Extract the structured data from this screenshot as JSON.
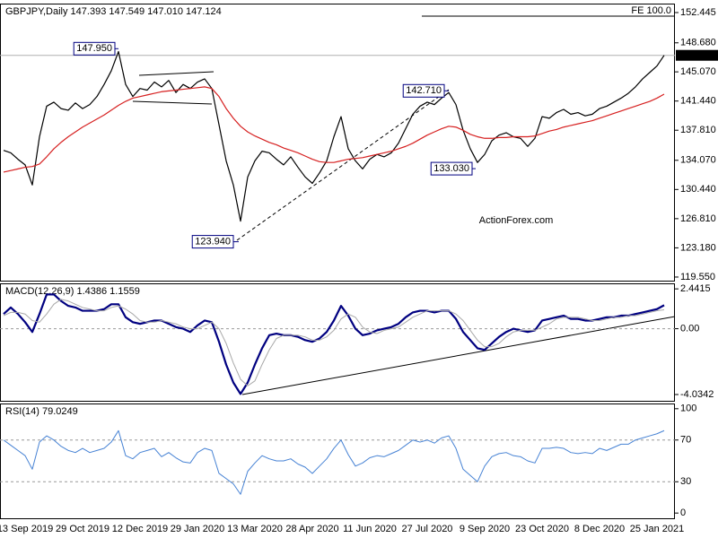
{
  "chart_data": [
    {
      "type": "line",
      "title": "GBPJPY,Daily  147.393 147.549 147.010 147.124",
      "ylim": [
        119.1,
        153.56
      ],
      "yticks": [
        {
          "value": 152.445,
          "label": "152.445"
        },
        {
          "value": 148.68,
          "label": "148.680"
        },
        {
          "value": 145.07,
          "label": "145.070"
        },
        {
          "value": 141.44,
          "label": "141.440"
        },
        {
          "value": 137.81,
          "label": "137.810"
        },
        {
          "value": 134.07,
          "label": "134.070"
        },
        {
          "value": 130.44,
          "label": "130.440"
        },
        {
          "value": 126.81,
          "label": "126.810"
        },
        {
          "value": 123.18,
          "label": "123.180"
        },
        {
          "value": 119.55,
          "label": "119.550"
        }
      ],
      "series": [
        {
          "color": "#000000",
          "values": [
            135.3,
            135.0,
            134.2,
            133.5,
            131.0,
            137.0,
            140.8,
            141.3,
            140.5,
            140.3,
            141.2,
            140.5,
            141.0,
            142.0,
            143.5,
            145.2,
            147.6,
            143.5,
            142.0,
            143.0,
            142.8,
            143.8,
            143.2,
            144.0,
            142.5,
            143.5,
            143.0,
            143.8,
            144.2,
            143.0,
            138.5,
            134.0,
            131.0,
            126.5,
            132.0,
            134.0,
            135.2,
            135.0,
            134.2,
            133.5,
            134.5,
            133.2,
            132.0,
            131.2,
            132.5,
            134.0,
            137.0,
            139.5,
            135.5,
            134.0,
            133.0,
            134.2,
            134.8,
            134.5,
            135.0,
            136.2,
            138.0,
            139.8,
            140.8,
            141.3,
            141.0,
            141.8,
            142.5,
            141.0,
            137.8,
            135.5,
            133.8,
            134.8,
            136.5,
            137.2,
            137.5,
            137.0,
            136.8,
            135.8,
            136.8,
            139.5,
            139.3,
            140.0,
            140.4,
            139.8,
            140.0,
            139.6,
            139.8,
            140.5,
            140.8,
            141.3,
            141.8,
            142.4,
            143.2,
            144.2,
            145.0,
            145.8,
            147.124
          ]
        },
        {
          "color": "#d62020",
          "values": [
            132.6,
            132.8,
            133.0,
            133.2,
            133.3,
            133.6,
            134.5,
            135.5,
            136.3,
            137.0,
            137.6,
            138.2,
            138.7,
            139.2,
            139.7,
            140.3,
            140.9,
            141.4,
            141.8,
            142.0,
            142.2,
            142.4,
            142.6,
            142.7,
            142.8,
            142.9,
            143.0,
            143.1,
            143.2,
            143.0,
            142.0,
            140.5,
            139.3,
            138.3,
            137.6,
            137.1,
            136.7,
            136.3,
            136.0,
            135.6,
            135.3,
            135.0,
            134.6,
            134.2,
            133.9,
            133.8,
            133.8,
            134.0,
            134.2,
            134.3,
            134.4,
            134.6,
            134.8,
            135.0,
            135.2,
            135.5,
            135.8,
            136.2,
            136.7,
            137.2,
            137.6,
            138.0,
            138.3,
            138.2,
            137.8,
            137.3,
            137.0,
            136.8,
            136.8,
            136.9,
            136.9,
            137.0,
            137.0,
            137.0,
            137.1,
            137.4,
            137.7,
            137.9,
            138.2,
            138.4,
            138.6,
            138.8,
            139.0,
            139.3,
            139.6,
            139.9,
            140.2,
            140.5,
            140.8,
            141.1,
            141.4,
            141.8,
            142.3
          ]
        }
      ],
      "current_price": {
        "value": 147.124,
        "label": "147.124"
      },
      "fe_level": {
        "value": 152.0,
        "label": "FE 100.0"
      },
      "annotations": [
        {
          "value": 147.95,
          "label": "147.950"
        },
        {
          "value": 142.71,
          "label": "142.710"
        },
        {
          "value": 133.03,
          "label": "133.030"
        },
        {
          "value": 123.94,
          "label": "123.940"
        }
      ],
      "watermark": "ActionForex.com"
    },
    {
      "type": "line",
      "title": "MACD(12,26,9) 1.4386 1.1559",
      "ylim": [
        -4.42,
        2.78
      ],
      "yticks": [
        2.4415,
        {
          "value": 0,
          "label": "0.00"
        },
        -4.0342
      ],
      "reference_lines": [
        0
      ],
      "series": [
        {
          "color": "#000080",
          "width": 2.2,
          "values": [
            0.9,
            1.3,
            0.9,
            0.4,
            -0.2,
            0.9,
            2.1,
            2.1,
            1.7,
            1.4,
            1.3,
            1.1,
            1.1,
            1.1,
            1.2,
            1.5,
            1.5,
            0.7,
            0.4,
            0.3,
            0.4,
            0.5,
            0.5,
            0.3,
            0.1,
            0.0,
            -0.2,
            0.2,
            0.5,
            0.4,
            -0.8,
            -2.2,
            -3.3,
            -4.0,
            -3.3,
            -2.2,
            -1.2,
            -0.4,
            -0.3,
            -0.4,
            -0.4,
            -0.5,
            -0.7,
            -0.8,
            -0.6,
            -0.2,
            0.5,
            1.4,
            0.8,
            0.0,
            -0.4,
            -0.3,
            -0.1,
            0.0,
            0.1,
            0.3,
            0.7,
            1.0,
            1.1,
            1.1,
            1.0,
            1.1,
            1.1,
            0.6,
            -0.2,
            -0.7,
            -1.2,
            -1.3,
            -0.9,
            -0.5,
            -0.2,
            0.0,
            -0.1,
            -0.2,
            -0.1,
            0.5,
            0.6,
            0.7,
            0.8,
            0.6,
            0.6,
            0.5,
            0.5,
            0.6,
            0.7,
            0.7,
            0.8,
            0.8,
            0.9,
            1.0,
            1.1,
            1.2,
            1.44
          ]
        },
        {
          "color": "#a8a8a8",
          "width": 1,
          "values": [
            0.8,
            1.0,
            1.0,
            0.9,
            0.5,
            0.4,
            0.9,
            1.5,
            1.8,
            1.7,
            1.5,
            1.3,
            1.2,
            1.1,
            1.1,
            1.3,
            1.4,
            1.2,
            0.9,
            0.5,
            0.4,
            0.4,
            0.5,
            0.4,
            0.3,
            0.1,
            0.0,
            0.0,
            0.2,
            0.4,
            0.0,
            -0.9,
            -2.1,
            -3.1,
            -3.5,
            -3.2,
            -2.2,
            -1.3,
            -0.6,
            -0.4,
            -0.4,
            -0.4,
            -0.5,
            -0.7,
            -0.7,
            -0.5,
            -0.1,
            0.6,
            0.9,
            0.7,
            0.1,
            -0.2,
            -0.3,
            -0.1,
            0.0,
            0.1,
            0.4,
            0.7,
            0.9,
            1.1,
            1.1,
            1.1,
            1.1,
            0.9,
            0.5,
            -0.1,
            -0.7,
            -1.1,
            -1.1,
            -0.9,
            -0.5,
            -0.2,
            -0.1,
            -0.1,
            -0.1,
            0.1,
            0.3,
            0.6,
            0.7,
            0.7,
            0.7,
            0.6,
            0.5,
            0.5,
            0.6,
            0.7,
            0.7,
            0.8,
            0.8,
            0.9,
            1.0,
            1.1,
            1.16
          ]
        }
      ]
    },
    {
      "type": "line",
      "title": "RSI(14) 79.0249",
      "ylim": [
        -5,
        105
      ],
      "yticks": [
        100,
        70,
        30,
        0
      ],
      "reference_lines": [
        70,
        30
      ],
      "categories": [
        null,
        null,
        null,
        "13 Sep 2019",
        null,
        null,
        null,
        null,
        null,
        null,
        null,
        "29 Oct 2019",
        null,
        null,
        null,
        null,
        null,
        null,
        null,
        "12 Dec 2019",
        null,
        null,
        null,
        null,
        null,
        null,
        null,
        "29 Jan 2020",
        null,
        null,
        null,
        null,
        null,
        null,
        null,
        "13 Mar 2020",
        null,
        null,
        null,
        null,
        null,
        null,
        null,
        "28 Apr 2020",
        null,
        null,
        null,
        null,
        null,
        null,
        null,
        "11 Jun 2020",
        null,
        null,
        null,
        null,
        null,
        null,
        null,
        "27 Jul 2020",
        null,
        null,
        null,
        null,
        null,
        null,
        null,
        "9 Sep 2020",
        null,
        null,
        null,
        null,
        null,
        null,
        null,
        "23 Oct 2020",
        null,
        null,
        null,
        null,
        null,
        null,
        null,
        "8 Dec 2020",
        null,
        null,
        null,
        null,
        null,
        null,
        null,
        "25 Jan 2021",
        null
      ],
      "series": [
        {
          "color": "#4682d4",
          "width": 1,
          "values": [
            70,
            65,
            60,
            55,
            42,
            68,
            74,
            70,
            64,
            60,
            58,
            62,
            58,
            60,
            62,
            68,
            79,
            55,
            52,
            58,
            60,
            62,
            54,
            58,
            53,
            49,
            48,
            58,
            62,
            60,
            38,
            33,
            28,
            18,
            40,
            48,
            55,
            52,
            50,
            50,
            52,
            47,
            44,
            38,
            45,
            52,
            62,
            70,
            56,
            45,
            48,
            53,
            55,
            54,
            57,
            60,
            65,
            70,
            68,
            70,
            67,
            72,
            74,
            62,
            42,
            36,
            30,
            45,
            54,
            57,
            58,
            55,
            54,
            50,
            48,
            62,
            62,
            63,
            62,
            58,
            57,
            58,
            57,
            62,
            60,
            63,
            66,
            66,
            70,
            72,
            74,
            76,
            79.02
          ]
        }
      ]
    }
  ]
}
